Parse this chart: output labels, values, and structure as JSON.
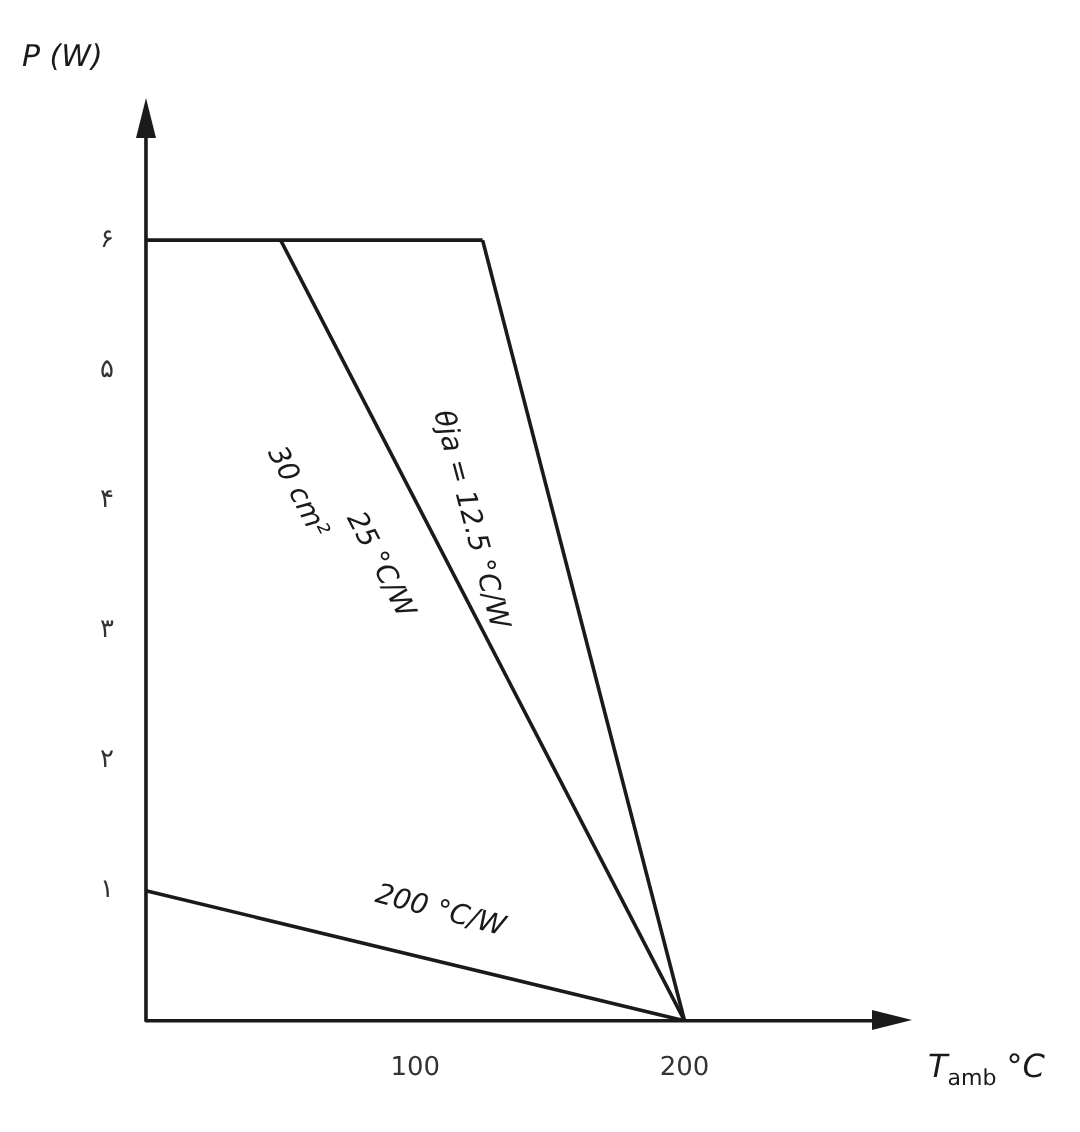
{
  "chart_data": {
    "type": "line",
    "xlabel": "T$_{amb}$ °C",
    "ylabel": "P (W)",
    "series": [
      {
        "color": "#1a1a1a",
        "x": [
          0,
          125
        ],
        "values": [
          6,
          6
        ]
      },
      {
        "color": "#1a1a1a",
        "x": [
          125,
          200
        ],
        "values": [
          6,
          0
        ]
      },
      {
        "color": "#1a1a1a",
        "x": [
          50,
          200
        ],
        "values": [
          6,
          0
        ]
      },
      {
        "color": "#1a1a1a",
        "x": [
          0,
          200
        ],
        "values": [
          1,
          0
        ]
      }
    ],
    "xlim": [
      0,
      280
    ],
    "xticks": [
      100,
      200
    ],
    "ylim": [
      0,
      7
    ],
    "yticks": [
      {
        "value": 1,
        "label": "۱"
      },
      {
        "value": 2,
        "label": "۲"
      },
      {
        "value": 3,
        "label": "۳"
      },
      {
        "value": 4,
        "label": "۴"
      },
      {
        "value": 5,
        "label": "۵"
      },
      {
        "value": 6,
        "label": "۶"
      }
    ],
    "annotations": [
      "θja = 12.5 °C/W",
      "25 °C/W",
      "30 cm²",
      "200 °C/W"
    ],
    "grid": false,
    "legend": false,
    "marker": "none",
    "line_style": "solid"
  }
}
